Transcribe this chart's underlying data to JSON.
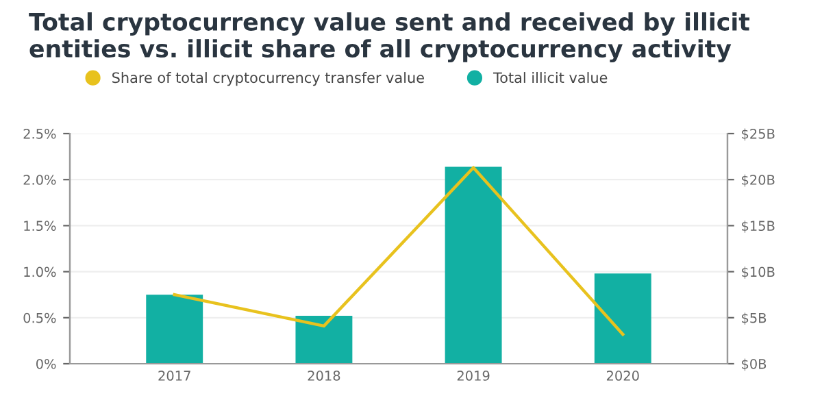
{
  "chart_data": {
    "type": "bar",
    "title": "Total cryptocurrency value sent and received by illicit entities vs. illicit share of all cryptocurrency activity",
    "categories": [
      "2017",
      "2018",
      "2019",
      "2020"
    ],
    "series": [
      {
        "name": "Share of total cryptocurrency transfer value",
        "type": "line",
        "color": "#e8c21e",
        "values": [
          0.75,
          0.41,
          2.13,
          0.32
        ]
      },
      {
        "name": "Total illicit value",
        "axis": "y2",
        "color": "#12b0a3",
        "values": [
          7.5,
          5.2,
          21.4,
          9.8
        ]
      }
    ],
    "ylim": [
      0,
      2.5
    ],
    "yticks": [
      {
        "value": 0,
        "label": "0%"
      },
      {
        "value": 0.5,
        "label": "0.5%"
      },
      {
        "value": 1.0,
        "label": "1.0%"
      },
      {
        "value": 1.5,
        "label": "1.5%"
      },
      {
        "value": 2.0,
        "label": "2.0%"
      },
      {
        "value": 2.5,
        "label": "2.5%"
      }
    ],
    "y2lim": [
      0,
      25
    ],
    "y2ticks": [
      {
        "value": 0,
        "label": "$0B"
      },
      {
        "value": 5,
        "label": "$5B"
      },
      {
        "value": 10,
        "label": "$10B"
      },
      {
        "value": 15,
        "label": "$15B"
      },
      {
        "value": 20,
        "label": "$20B"
      },
      {
        "value": 25,
        "label": "$25B"
      }
    ],
    "grid": "y",
    "legend": "top left",
    "marker": "none"
  }
}
